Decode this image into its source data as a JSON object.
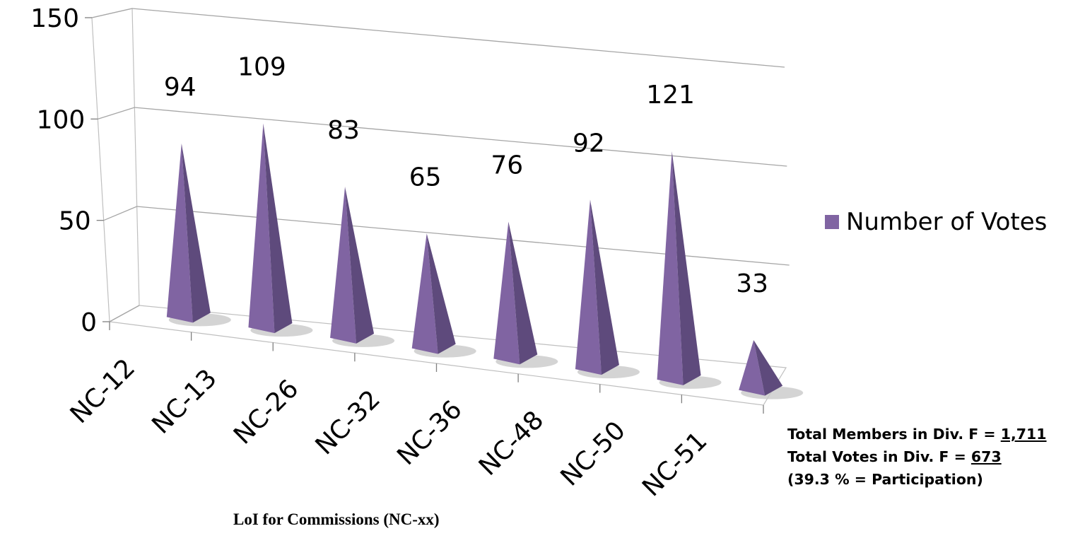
{
  "chart_data": {
    "type": "bar",
    "categories": [
      "NC-12",
      "NC-13",
      "NC-26",
      "NC-32",
      "NC-36",
      "NC-48",
      "NC-50",
      "NC-51"
    ],
    "series": [
      {
        "name": "Number of Votes",
        "values": [
          94,
          109,
          83,
          65,
          76,
          92,
          121,
          33
        ]
      }
    ],
    "data_labels": [
      "94",
      "109",
      "83",
      "65",
      "76",
      "92",
      "121",
      "33"
    ],
    "y_ticks": [
      "0",
      "50",
      "100",
      "150"
    ],
    "ylim": [
      0,
      150
    ],
    "xlabel": "LoI for Commissions (NC-xx)",
    "ylabel": "",
    "title": "",
    "grid": true,
    "legend_position": "right",
    "bar_shape": "pyramid",
    "color": "#8064a2",
    "color_dark": "#5e4a7c"
  },
  "stats": {
    "members_label": "Total Members in Div. F = ",
    "members_value": "1,711",
    "votes_label": "Total Votes in Div. F = ",
    "votes_value": "673",
    "participation": "(39.3 % = Participation)"
  }
}
